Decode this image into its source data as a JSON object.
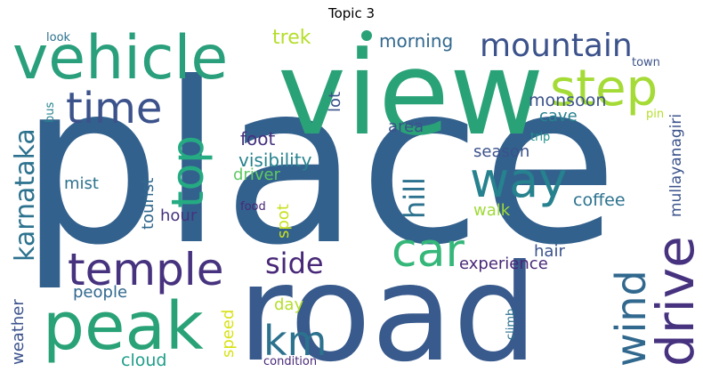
{
  "title": "Topic 3",
  "words": {
    "place": "place",
    "view": "view",
    "road": "road",
    "vehicle": "vehicle",
    "peak": "peak",
    "temple": "temple",
    "time": "time",
    "step": "step",
    "mountain": "mountain",
    "way": "way",
    "car": "car",
    "top": "top",
    "drive": "drive",
    "wind": "wind",
    "km": "km",
    "karnataka": "karnataka",
    "side": "side",
    "hill": "hill",
    "trek": "trek",
    "morning": "morning",
    "monsoon": "monsoon",
    "cave": "cave",
    "area": "area",
    "foot": "foot",
    "visibility": "visibility",
    "driver": "driver",
    "tourist": "tourist",
    "lot": "lot",
    "season": "season",
    "coffee": "coffee",
    "walk": "walk",
    "mist": "mist",
    "hour": "hour",
    "spot": "spot",
    "food": "food",
    "hair": "hair",
    "experience": "experience",
    "people": "people",
    "day": "day",
    "speed": "speed",
    "cloud": "cloud",
    "condition": "condition",
    "weather": "weather",
    "bus": "bus",
    "look": "look",
    "town": "town",
    "pin": "pin",
    "trip": "trip",
    "climb": "climb",
    "mullayanagiri": "mullayanagiri"
  },
  "colors": {
    "place": "#33618d",
    "view": "#2aa277",
    "road": "#385a8c",
    "vehicle": "#2a9f7c"
  }
}
